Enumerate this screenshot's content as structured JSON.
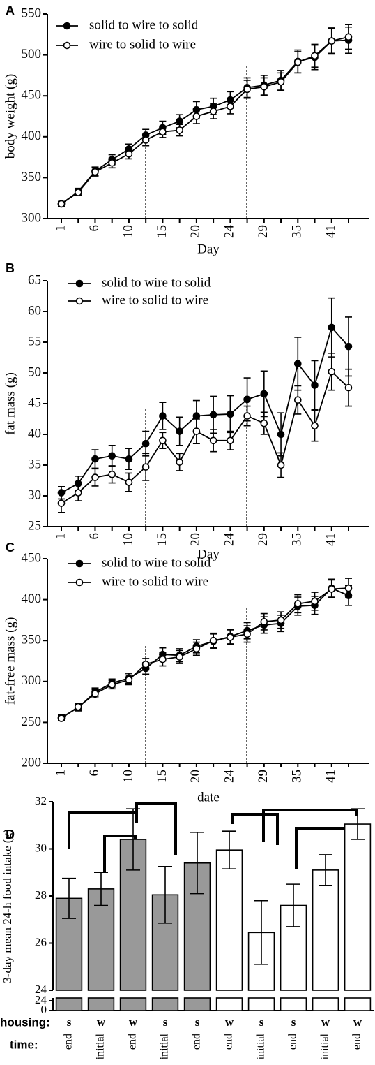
{
  "chart_data": [
    {
      "type": "line",
      "panel": "A",
      "ylabel": "body weight (g)",
      "xlabel": "Day",
      "categories": [
        "1",
        null,
        "6",
        null,
        "10",
        null,
        "15",
        null,
        "20",
        null,
        "24",
        null,
        "29",
        null,
        "35",
        null,
        "41",
        null
      ],
      "ylim": [
        300,
        550
      ],
      "yticks": [
        300,
        350,
        400,
        450,
        500,
        550
      ],
      "legend": "upper left",
      "series": [
        {
          "name": "solid to wire to solid",
          "color": "#000000",
          "values": [
            318,
            333,
            358,
            372,
            385,
            402,
            411,
            419,
            433,
            437,
            445,
            460,
            463,
            469,
            492,
            497,
            517,
            518
          ],
          "errors": [
            3,
            4,
            5,
            6,
            6,
            7,
            8,
            8,
            10,
            10,
            10,
            12,
            12,
            12,
            14,
            15,
            16,
            16
          ]
        },
        {
          "name": "wire to solid to wire",
          "color": "#ffffff",
          "values": [
            318,
            332,
            357,
            368,
            379,
            396,
            406,
            408,
            425,
            431,
            437,
            458,
            461,
            467,
            491,
            499,
            517,
            522
          ],
          "errors": [
            3,
            4,
            5,
            6,
            6,
            7,
            7,
            7,
            9,
            9,
            9,
            11,
            11,
            11,
            13,
            14,
            15,
            15
          ]
        }
      ]
    },
    {
      "type": "line",
      "panel": "B",
      "ylabel": "fat mass (g)",
      "xlabel": "Day",
      "categories": [
        "1",
        null,
        "6",
        null,
        "10",
        null,
        "15",
        null,
        "20",
        null,
        "24",
        null,
        "29",
        null,
        "35",
        null,
        "41",
        null
      ],
      "ylim": [
        25,
        65
      ],
      "yticks": [
        25,
        30,
        35,
        40,
        45,
        50,
        55,
        60,
        65
      ],
      "legend": "upper left",
      "series": [
        {
          "name": "solid to wire to solid",
          "color": "#000000",
          "values": [
            30.5,
            32,
            36,
            36.5,
            36,
            38.5,
            43,
            40.5,
            43,
            43.2,
            43.3,
            45.7,
            46.6,
            40,
            51.5,
            48,
            57.4,
            54.3
          ],
          "errors": [
            1,
            1.2,
            1.5,
            1.7,
            1.7,
            2,
            2.2,
            2.3,
            2.5,
            3,
            3,
            3.5,
            3.7,
            3.5,
            4.3,
            4,
            4.8,
            4.8
          ]
        },
        {
          "name": "wire to solid to wire",
          "color": "#ffffff",
          "values": [
            28.8,
            30.5,
            33,
            33.5,
            32.2,
            34.7,
            39,
            35.5,
            40.5,
            39,
            39,
            43,
            41.8,
            35,
            45.6,
            41.4,
            50.2,
            47.6
          ],
          "errors": [
            1.5,
            1.3,
            1.4,
            1.4,
            1.5,
            2.2,
            1.3,
            1.4,
            2,
            1.8,
            1.5,
            1.6,
            1.8,
            2,
            2.3,
            2.5,
            3,
            3
          ]
        }
      ]
    },
    {
      "type": "line",
      "panel": "C",
      "ylabel": "fat-free mass (g)",
      "xlabel": "date",
      "categories": [
        "1",
        null,
        "6",
        null,
        "10",
        null,
        "15",
        null,
        "20",
        null,
        "24",
        null,
        "29",
        null,
        "35",
        null,
        "41",
        null
      ],
      "ylim": [
        200,
        450
      ],
      "yticks": [
        200,
        250,
        300,
        350,
        400,
        450
      ],
      "legend": "upper left",
      "series": [
        {
          "name": "solid to wire to solid",
          "color": "#000000",
          "values": [
            256,
            268,
            287,
            298,
            304,
            316,
            333,
            332,
            343,
            349,
            355,
            362,
            369,
            371,
            392,
            393,
            414,
            405
          ],
          "errors": [
            3,
            4,
            5,
            5,
            6,
            7,
            8,
            8,
            8,
            9,
            9,
            10,
            10,
            10,
            11,
            11,
            11,
            12
          ]
        },
        {
          "name": "wire to solid to wire",
          "color": "#ffffff",
          "values": [
            255,
            269,
            285,
            296,
            302,
            321,
            327,
            330,
            340,
            350,
            354,
            358,
            373,
            375,
            395,
            398,
            413,
            414
          ],
          "errors": [
            3,
            4,
            5,
            5,
            6,
            7,
            8,
            8,
            8,
            9,
            9,
            10,
            10,
            10,
            11,
            11,
            11,
            12
          ]
        }
      ]
    },
    {
      "type": "bar",
      "panel": "D",
      "ylabel": "3-day mean 24-h food intake (g)",
      "row_labels": [
        "housing:",
        "time:"
      ],
      "housing": [
        "s",
        "w",
        "w",
        "s",
        "s",
        "w",
        "s",
        "s",
        "w",
        "w"
      ],
      "time": [
        "end",
        "initial",
        "end",
        "initial",
        "end",
        "end",
        "initial",
        "end",
        "initial",
        "end"
      ],
      "values": [
        27.9,
        28.3,
        30.4,
        28.05,
        29.4,
        29.95,
        26.45,
        27.6,
        29.1,
        31.05
      ],
      "errors": [
        0.85,
        0.7,
        1.3,
        1.2,
        1.3,
        0.8,
        1.35,
        0.9,
        0.65,
        0.65
      ],
      "colors": [
        "#999999",
        "#999999",
        "#999999",
        "#999999",
        "#999999",
        "#ffffff",
        "#ffffff",
        "#ffffff",
        "#ffffff",
        "#ffffff"
      ],
      "ylim": [
        24,
        32
      ],
      "yticks": [
        24,
        26,
        28,
        30,
        32
      ],
      "break_ylim": [
        0,
        24
      ],
      "break_yticks": [
        0,
        24
      ]
    }
  ]
}
